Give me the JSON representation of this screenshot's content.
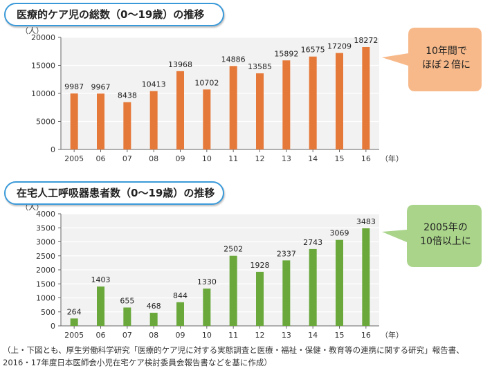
{
  "charts": {
    "top_title": "医療的ケア児の総数（0〜19歳）の推移",
    "bottom_title": "在宅人工呼吸器患者数（0〜19歳）の推移",
    "top_callout": [
      "10年間で",
      "ほぼ２倍に"
    ],
    "bottom_callout": [
      "2005年の",
      "10倍以上に"
    ],
    "source_lines": [
      "（上・下図とも、厚生労働科学研究「医療的ケア児に対する実態調査と医療・福祉・保健・教育等の連携に関する研究」報告書、",
      "2016・17年度日本医師会小児在宅ケア検討委員会報告書などを基に作成）"
    ]
  },
  "colors": {
    "top_bar": "#e5793a",
    "bottom_bar": "#6aa83c",
    "top_callout": "#f7b98a",
    "bottom_callout": "#a9d48a",
    "title_border": "#3a9ad9"
  },
  "chart_data": [
    {
      "type": "bar",
      "title": "医療的ケア児の総数（0〜19歳）の推移",
      "ylabel": "（人）",
      "xunit": "（年）",
      "categories": [
        "2005",
        "06",
        "07",
        "08",
        "09",
        "10",
        "11",
        "12",
        "13",
        "14",
        "15",
        "16"
      ],
      "values": [
        9987,
        9967,
        8438,
        10413,
        13968,
        10702,
        14886,
        13585,
        15892,
        16575,
        17209,
        18272
      ],
      "yticks": [
        0,
        5000,
        10000,
        15000,
        20000
      ],
      "ylim": [
        0,
        20000
      ],
      "grid": true
    },
    {
      "type": "bar",
      "title": "在宅人工呼吸器患者数（0〜19歳）の推移",
      "ylabel": "（人）",
      "xunit": "（年）",
      "categories": [
        "2005",
        "06",
        "07",
        "08",
        "09",
        "10",
        "11",
        "12",
        "13",
        "14",
        "15",
        "16"
      ],
      "values": [
        264,
        1403,
        655,
        468,
        844,
        1330,
        2502,
        1928,
        2337,
        2743,
        3069,
        3483
      ],
      "yticks": [
        0,
        500,
        1000,
        1500,
        2000,
        2500,
        3000,
        3500,
        4000
      ],
      "ylim": [
        0,
        4000
      ],
      "grid": true
    }
  ]
}
